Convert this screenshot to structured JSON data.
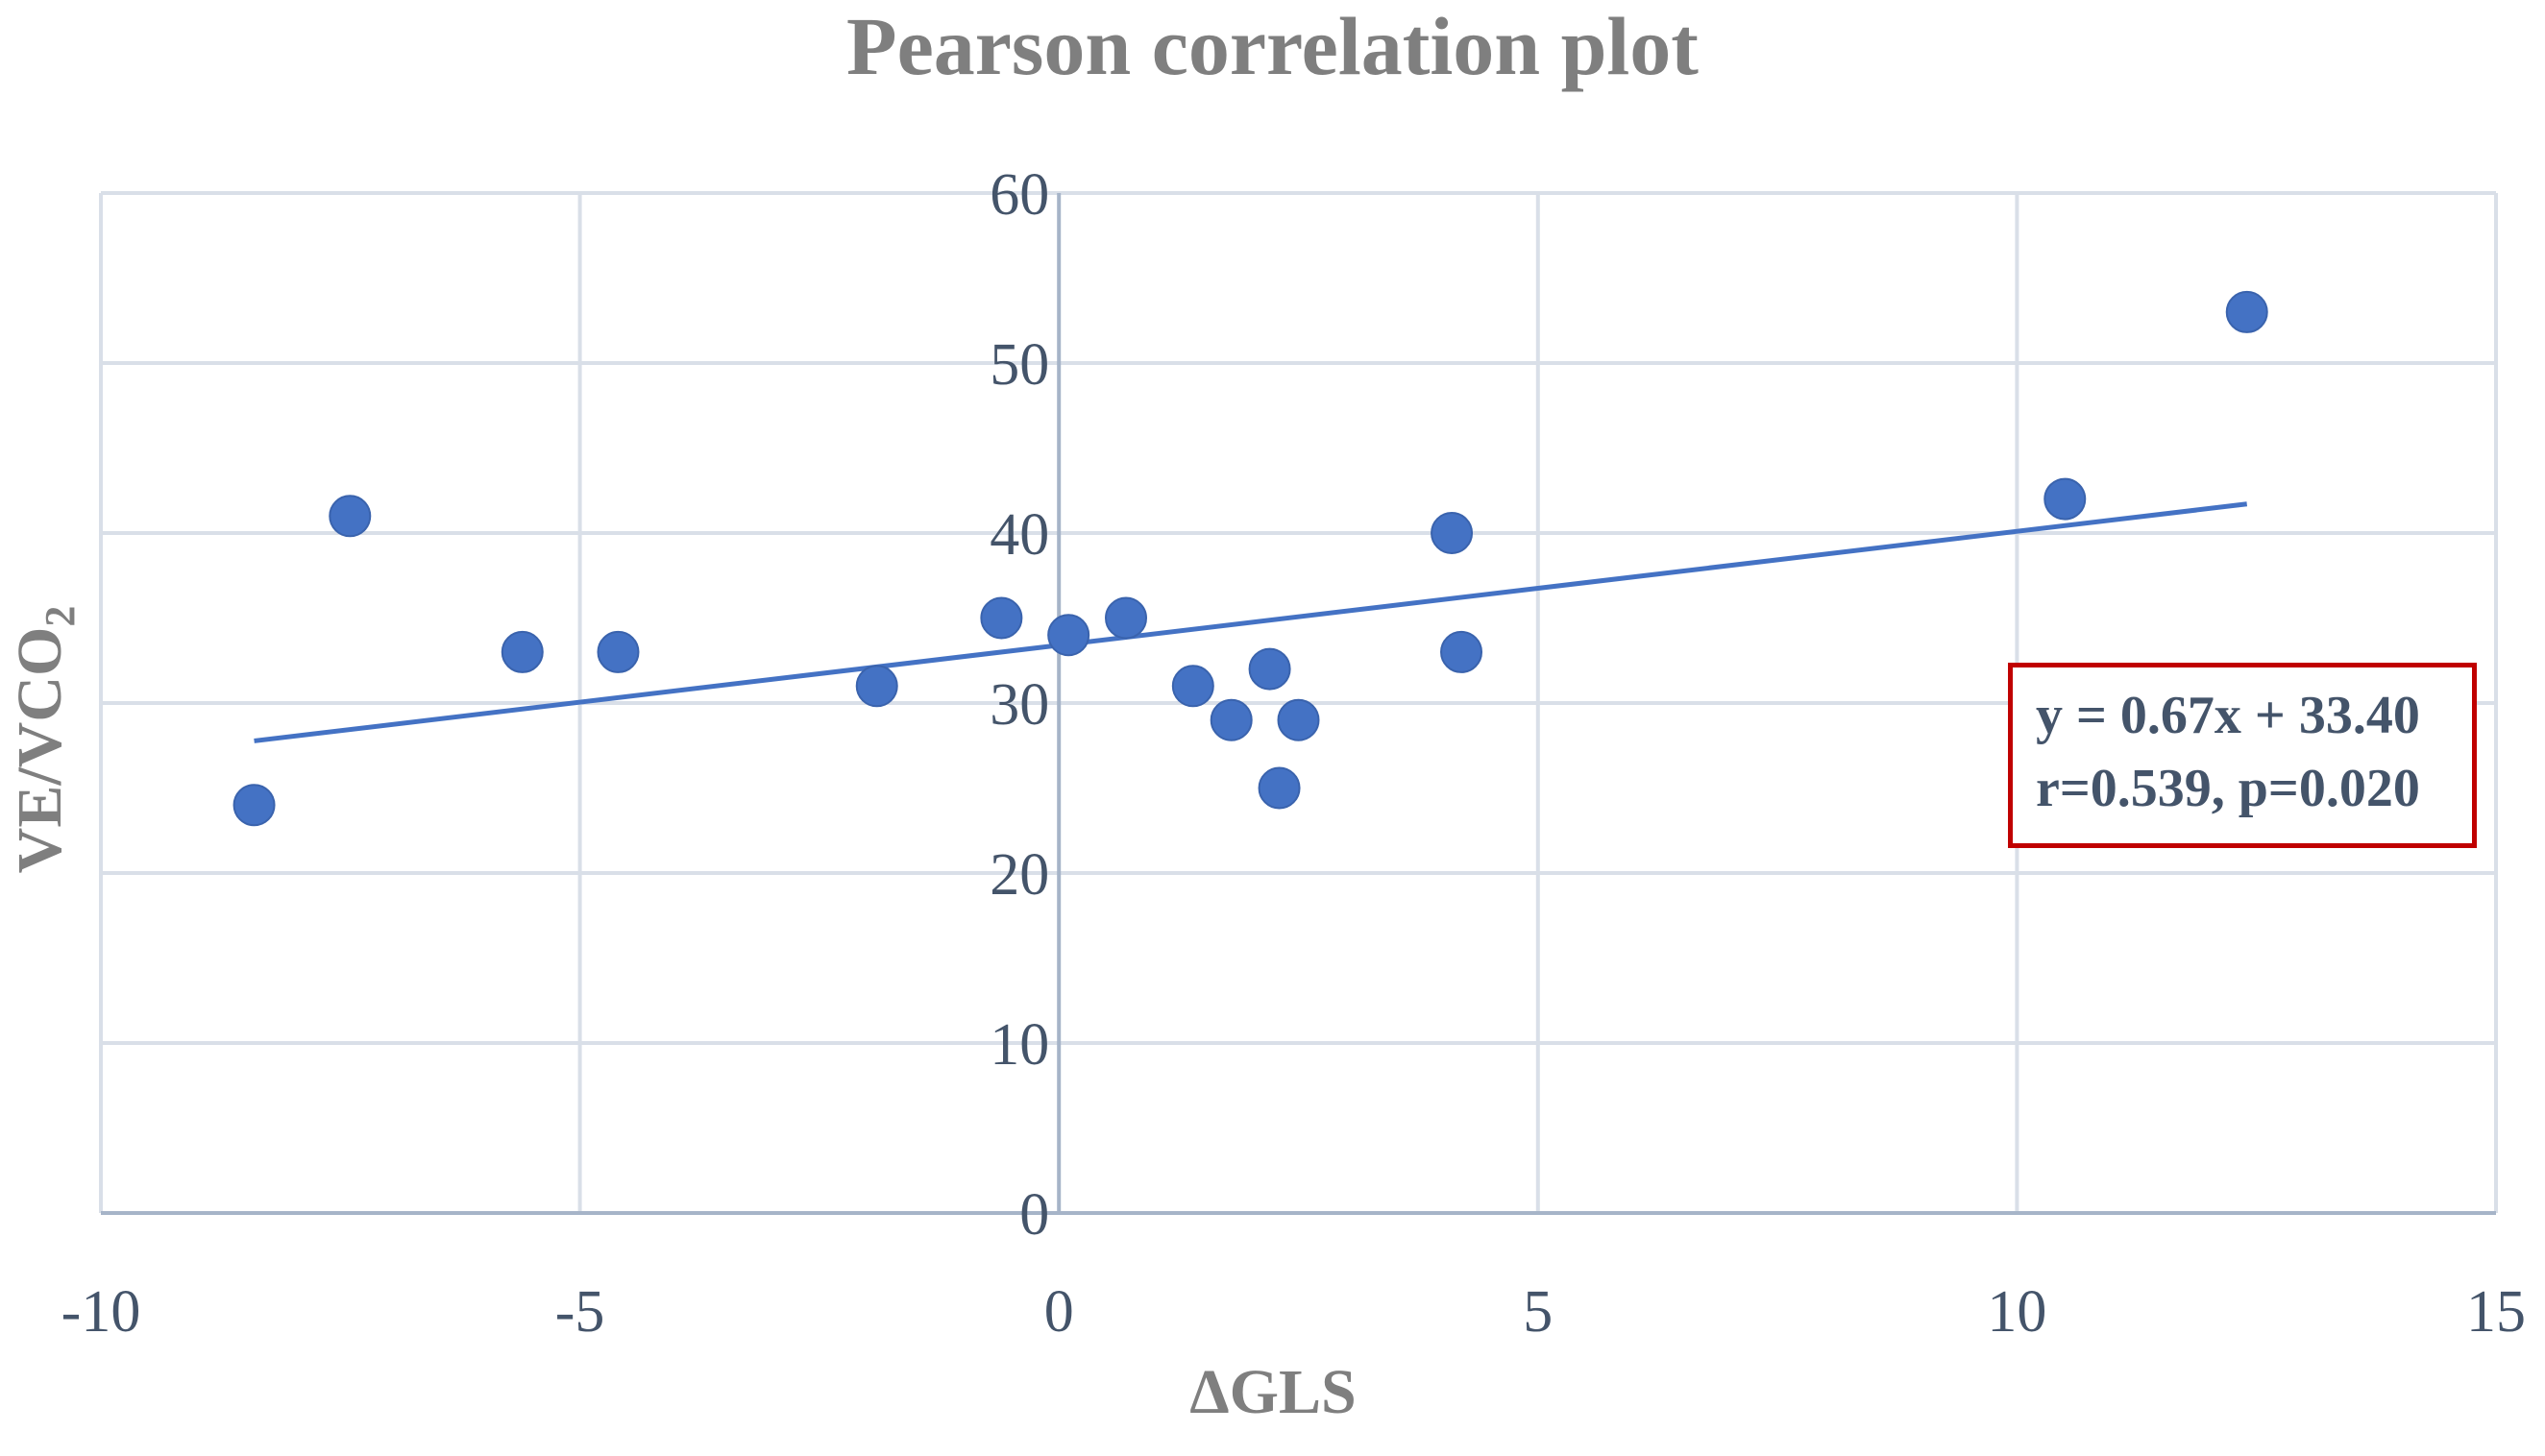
{
  "chart_data": {
    "type": "scatter",
    "title": "Pearson correlation plot",
    "xlabel": "ΔGLS",
    "ylabel_main": "VE/VCO",
    "ylabel_sub": "2",
    "xlim": [
      -10,
      15
    ],
    "ylim": [
      0,
      60
    ],
    "x_ticks": [
      -10,
      -5,
      0,
      5,
      10,
      15
    ],
    "y_ticks": [
      0,
      10,
      20,
      30,
      40,
      50,
      60
    ],
    "grid": true,
    "points": [
      {
        "x": -8.4,
        "y": 24
      },
      {
        "x": -7.4,
        "y": 41
      },
      {
        "x": -5.6,
        "y": 33
      },
      {
        "x": -4.6,
        "y": 33
      },
      {
        "x": -1.9,
        "y": 31
      },
      {
        "x": -0.6,
        "y": 35
      },
      {
        "x": 0.1,
        "y": 34
      },
      {
        "x": 0.7,
        "y": 35
      },
      {
        "x": 1.4,
        "y": 31
      },
      {
        "x": 1.8,
        "y": 29
      },
      {
        "x": 2.2,
        "y": 32
      },
      {
        "x": 2.3,
        "y": 25
      },
      {
        "x": 2.5,
        "y": 29
      },
      {
        "x": 4.1,
        "y": 40
      },
      {
        "x": 4.2,
        "y": 33
      },
      {
        "x": 10.5,
        "y": 42
      },
      {
        "x": 12.4,
        "y": 53
      }
    ],
    "trendline": {
      "slope": 0.67,
      "intercept": 33.4,
      "x_start": -8.4,
      "x_end": 12.4
    },
    "annotation": {
      "line1": "y = 0.67x + 33.40",
      "line2": "r=0.539, p=0.020"
    },
    "colors": {
      "point": "#4472c4",
      "trendline": "#4472c4",
      "grid": "#d9dfe8",
      "axis": "#a6b4c8",
      "tick_text": "#44546a",
      "label": "#7f7f7f",
      "box_border": "#c00000"
    }
  }
}
